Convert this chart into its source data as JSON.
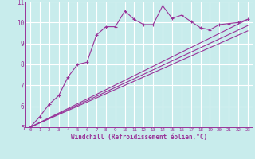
{
  "xlabel": "Windchill (Refroidissement éolien,°C)",
  "ylabel": "",
  "background_color": "#c8ecec",
  "plot_bg": "#c8ecec",
  "grid_color": "#ffffff",
  "line_color": "#993399",
  "xlim": [
    -0.5,
    23.5
  ],
  "ylim": [
    5,
    11
  ],
  "xticks": [
    0,
    1,
    2,
    3,
    4,
    5,
    6,
    7,
    8,
    9,
    10,
    11,
    12,
    13,
    14,
    15,
    16,
    17,
    18,
    19,
    20,
    21,
    22,
    23
  ],
  "yticks": [
    5,
    6,
    7,
    8,
    9,
    10,
    11
  ],
  "main_x": [
    0,
    1,
    2,
    3,
    4,
    5,
    6,
    7,
    8,
    9,
    10,
    11,
    12,
    13,
    14,
    15,
    16,
    17,
    18,
    19,
    20,
    21,
    22,
    23
  ],
  "main_y": [
    5.0,
    5.5,
    6.1,
    6.5,
    7.4,
    8.0,
    8.1,
    9.4,
    9.8,
    9.8,
    10.55,
    10.15,
    9.9,
    9.9,
    10.8,
    10.2,
    10.35,
    10.05,
    9.75,
    9.65,
    9.9,
    9.95,
    10.0,
    10.15
  ],
  "smooth_lines": [
    {
      "x": [
        0,
        23
      ],
      "y": [
        5.0,
        10.15
      ]
    },
    {
      "x": [
        0,
        23
      ],
      "y": [
        5.0,
        9.85
      ]
    },
    {
      "x": [
        0,
        23
      ],
      "y": [
        5.0,
        9.6
      ]
    }
  ]
}
